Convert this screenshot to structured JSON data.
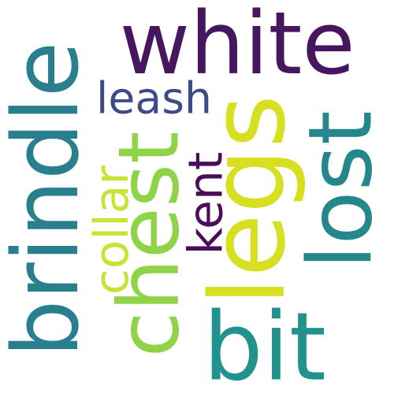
{
  "word_cloud": {
    "background": "#ffffff",
    "words": [
      {
        "text": "white",
        "color": "#46175f",
        "orientation": "horizontal"
      },
      {
        "text": "brindle",
        "color": "#2a7f8e",
        "orientation": "vertical"
      },
      {
        "text": "lost",
        "color": "#25878c",
        "orientation": "vertical"
      },
      {
        "text": "legs",
        "color": "#d6e020",
        "orientation": "vertical"
      },
      {
        "text": "chest",
        "color": "#8fd448",
        "orientation": "vertical"
      },
      {
        "text": "bit",
        "color": "#21928c",
        "orientation": "horizontal"
      },
      {
        "text": "leash",
        "color": "#3d4b8a",
        "orientation": "horizontal"
      },
      {
        "text": "collar",
        "color": "#c7e436",
        "orientation": "vertical"
      },
      {
        "text": "kent",
        "color": "#4a0d5c",
        "orientation": "vertical"
      }
    ]
  }
}
